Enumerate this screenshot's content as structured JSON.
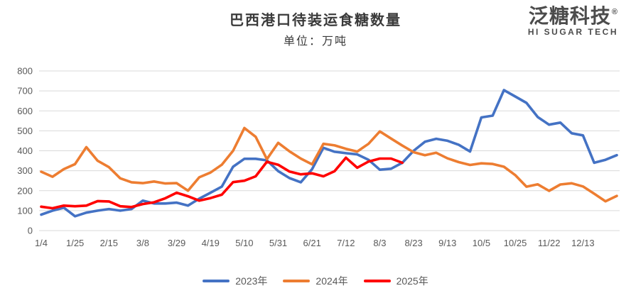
{
  "header": {
    "title": "巴西港口待装运食糖数量",
    "subtitle": "单位：万吨"
  },
  "logo": {
    "cn_name": "泛糖科技",
    "registered_mark": "®",
    "en_name": "HI SUGAR TECH"
  },
  "colors": {
    "series_2023": "#4472C4",
    "series_2024": "#ED7D31",
    "series_2025": "#FF0000",
    "gridline": "#D9D9D9",
    "axis_text": "#595959",
    "title_text": "#3A3A3A",
    "logo_text": "#4C4C4C"
  },
  "chart_data": {
    "type": "line",
    "title": "巴西港口待装运食糖数量",
    "subtitle": "单位：万吨",
    "ylabel": "",
    "xlabel": "",
    "ylim": [
      0,
      800
    ],
    "ytick_step": 100,
    "grid": true,
    "legend_position": "bottom",
    "n_points": 52,
    "x_label_every": 3,
    "x_tick_labels": [
      "1/4",
      "1/25",
      "2/15",
      "3/8",
      "3/29",
      "4/19",
      "5/10",
      "5/31",
      "6/21",
      "7/12",
      "8/3",
      "8/23",
      "9/13",
      "10/5",
      "10/25",
      "11/22",
      "12/13"
    ],
    "series": [
      {
        "name": "2023年",
        "color": "#4472C4",
        "values": [
          80,
          100,
          115,
          72,
          90,
          100,
          108,
          100,
          108,
          150,
          136,
          136,
          140,
          125,
          160,
          190,
          220,
          320,
          360,
          360,
          352,
          298,
          263,
          242,
          308,
          415,
          395,
          388,
          382,
          355,
          305,
          310,
          340,
          400,
          445,
          460,
          450,
          430,
          396,
          567,
          576,
          704,
          672,
          640,
          569,
          531,
          541,
          488,
          477,
          340,
          355,
          378
        ]
      },
      {
        "name": "2024年",
        "color": "#ED7D31",
        "values": [
          295,
          270,
          308,
          333,
          418,
          350,
          318,
          262,
          242,
          238,
          246,
          236,
          238,
          200,
          267,
          291,
          330,
          400,
          514,
          470,
          358,
          440,
          397,
          361,
          332,
          435,
          427,
          410,
          396,
          435,
          497,
          461,
          426,
          393,
          378,
          390,
          362,
          343,
          329,
          337,
          334,
          320,
          278,
          220,
          232,
          199,
          231,
          237,
          221,
          185,
          147,
          174
        ]
      },
      {
        "name": "2025年",
        "color": "#FF0000",
        "values": [
          120,
          112,
          125,
          122,
          125,
          148,
          146,
          122,
          118,
          133,
          142,
          162,
          190,
          172,
          150,
          163,
          180,
          243,
          250,
          272,
          345,
          330,
          296,
          282,
          287,
          272,
          298,
          365,
          315,
          346,
          361,
          361,
          340
        ]
      }
    ]
  }
}
